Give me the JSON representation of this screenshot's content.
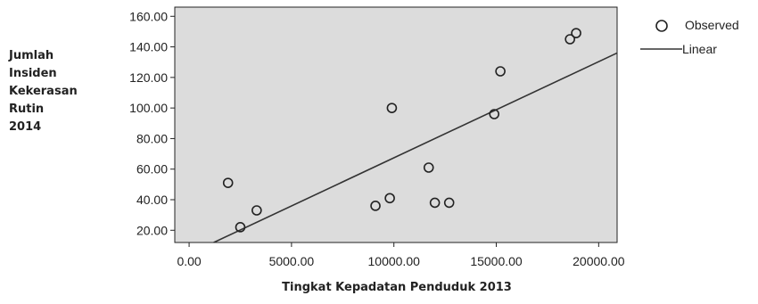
{
  "chart_data": {
    "type": "scatter",
    "xlabel": "Tingkat Kepadatan Penduduk 2013",
    "ylabel": "Jumlah\nInsiden\nKekerasan\nRutin\n 2014",
    "xlim": [
      -700,
      20900
    ],
    "ylim": [
      12,
      166
    ],
    "x_ticks": [
      "0.00",
      "5000.00",
      "10000.00",
      "15000.00",
      "20000.00"
    ],
    "y_ticks": [
      "20.00",
      "40.00",
      "60.00",
      "80.00",
      "100.00",
      "120.00",
      "140.00",
      "160.00"
    ],
    "grid": false,
    "legend_position": "top-right",
    "legend": [
      "Observed",
      "Linear"
    ],
    "series": [
      {
        "name": "Observed",
        "kind": "scatter",
        "points": [
          [
            1900,
            51
          ],
          [
            2500,
            22
          ],
          [
            3300,
            33
          ],
          [
            9100,
            36
          ],
          [
            9800,
            41
          ],
          [
            9900,
            100
          ],
          [
            11700,
            61
          ],
          [
            12000,
            38
          ],
          [
            12700,
            38
          ],
          [
            14900,
            96
          ],
          [
            15200,
            124
          ],
          [
            18600,
            145
          ],
          [
            18900,
            149
          ]
        ]
      },
      {
        "name": "Linear",
        "kind": "line",
        "points": [
          [
            1200,
            12
          ],
          [
            20900,
            136
          ]
        ]
      }
    ],
    "colors": {
      "plot_background": "#dcdcdc",
      "marker": "#222222",
      "line": "#333333",
      "axis": "#222222"
    }
  }
}
